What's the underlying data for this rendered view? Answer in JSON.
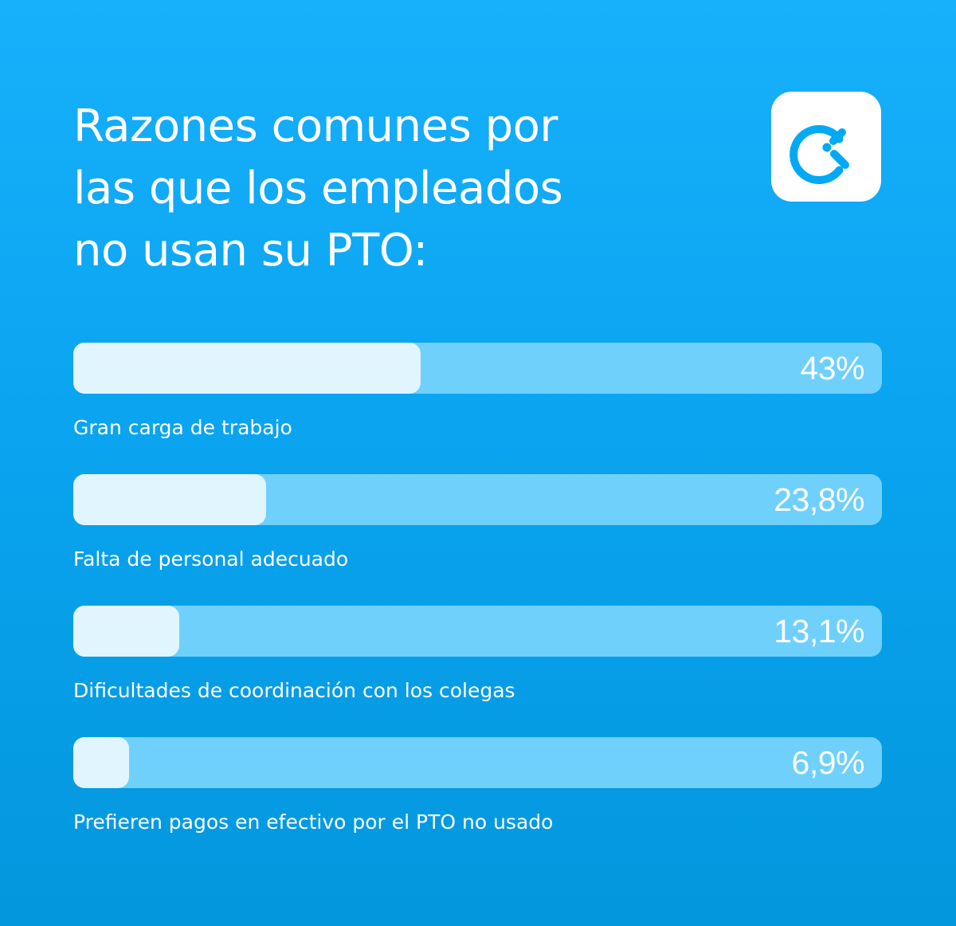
{
  "title_lines": [
    "Razones comunes por",
    "las que los empleados",
    "no usan su PTO:"
  ],
  "logo": {
    "icon": "clock-c-logo-icon",
    "color": "#03a9f4",
    "background": "#ffffff"
  },
  "colors": {
    "background_top": "#16b0fb",
    "background_bottom": "#0397dd",
    "bar_track": "#6fd0fb",
    "bar_fill": "#e1f5fe",
    "text": "#ffffff"
  },
  "chart_data": {
    "type": "bar",
    "orientation": "horizontal",
    "categories": [
      "Gran carga de trabajo",
      "Falta de personal adecuado",
      "Dificultades de coordinación con los colegas",
      "Prefieren pagos en efectivo por el PTO no usado"
    ],
    "values": [
      43,
      23.8,
      13.1,
      6.9
    ],
    "value_labels": [
      "43%",
      "23,8%",
      "13,1%",
      "6,9%"
    ],
    "xlim": [
      0,
      100
    ],
    "grid": false
  }
}
